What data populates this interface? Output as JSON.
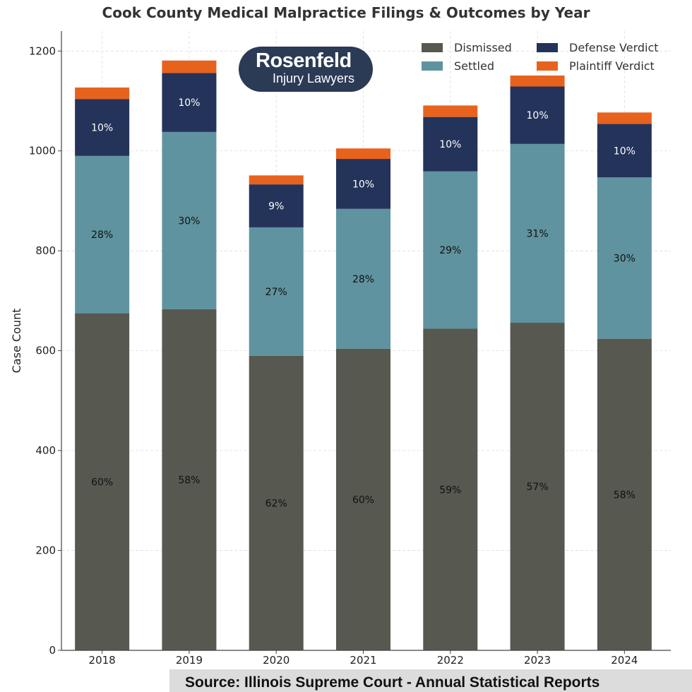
{
  "chart_data": {
    "type": "bar",
    "stacked": true,
    "title": "Cook County Medical Malpractice Filings & Outcomes by Year",
    "xlabel": "",
    "ylabel": "Case Count",
    "ylim": [
      0,
      1240
    ],
    "yticks": [
      0,
      200,
      400,
      600,
      800,
      1000,
      1200
    ],
    "grid": true,
    "legend_position": "top-right",
    "categories": [
      "2018",
      "2019",
      "2020",
      "2021",
      "2022",
      "2023",
      "2024"
    ],
    "series": [
      {
        "name": "Dismissed",
        "color": "#575850",
        "values": [
          675,
          683,
          590,
          604,
          644,
          656,
          624
        ],
        "labels": [
          "60%",
          "58%",
          "62%",
          "60%",
          "59%",
          "57%",
          "58%"
        ]
      },
      {
        "name": "Settled",
        "color": "#5f939f",
        "values": [
          315,
          355,
          257,
          280,
          315,
          358,
          323
        ],
        "labels": [
          "28%",
          "30%",
          "27%",
          "28%",
          "29%",
          "31%",
          "30%"
        ]
      },
      {
        "name": "Defense Verdict",
        "color": "#24335a",
        "values": [
          114,
          118,
          86,
          100,
          109,
          115,
          107
        ],
        "labels": [
          "10%",
          "10%",
          "9%",
          "10%",
          "10%",
          "10%",
          "10%"
        ]
      },
      {
        "name": "Plaintiff Verdict",
        "color": "#e7621d",
        "values": [
          23,
          25,
          18,
          21,
          23,
          22,
          23
        ],
        "labels": []
      }
    ]
  },
  "logo": {
    "name": "Rosenfeld",
    "subtitle": "Injury Lawyers"
  },
  "source": "Source: Illinois Supreme Court - Annual Statistical Reports"
}
